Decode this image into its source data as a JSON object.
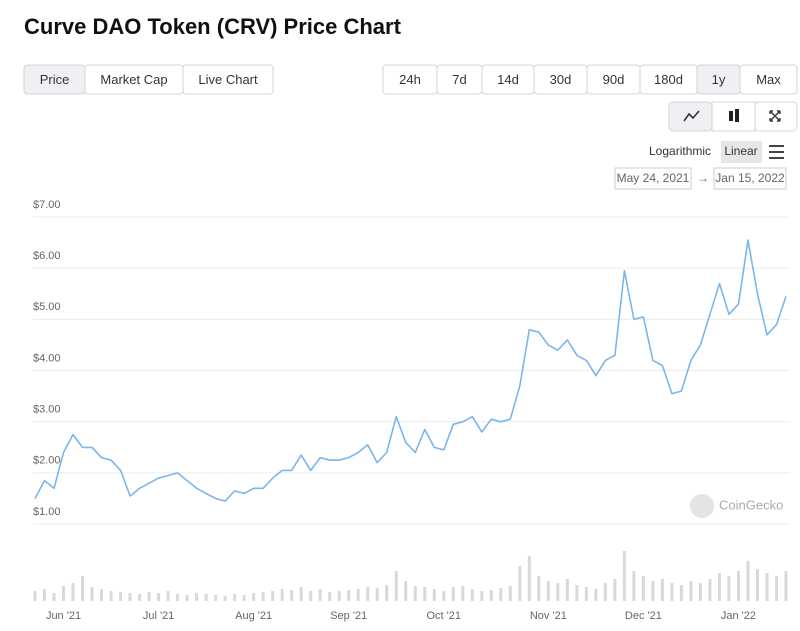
{
  "header": {
    "title": "Curve DAO Token (CRV) Price Chart"
  },
  "tabs": [
    "Price",
    "Market Cap",
    "Live Chart"
  ],
  "active_tab": 0,
  "ranges": [
    "24h",
    "7d",
    "14d",
    "30d",
    "90d",
    "180d",
    "1y",
    "Max"
  ],
  "active_range": 6,
  "scale_options": [
    "Logarithmic",
    "Linear"
  ],
  "active_scale": 1,
  "date_range": {
    "from": "May 24, 2021",
    "arrow": "→",
    "to": "Jan 15, 2022"
  },
  "watermark": "CoinGecko",
  "chart_data": {
    "type": "line",
    "color": "#7cb5ec",
    "volume_color": "#d9d9d9",
    "grid": true,
    "categories": [
      null,
      null,
      null,
      "Jun '21",
      null,
      null,
      null,
      null,
      null,
      null,
      null,
      null,
      null,
      "Jul '21",
      null,
      null,
      null,
      null,
      null,
      null,
      null,
      null,
      null,
      "Aug '21",
      null,
      null,
      null,
      null,
      null,
      null,
      null,
      null,
      null,
      "Sep '21",
      null,
      null,
      null,
      null,
      null,
      null,
      null,
      null,
      null,
      "Oct '21",
      null,
      null,
      null,
      null,
      null,
      null,
      null,
      null,
      null,
      null,
      "Nov '21",
      null,
      null,
      null,
      null,
      null,
      null,
      null,
      null,
      null,
      "Dec '21",
      null,
      null,
      null,
      null,
      null,
      null,
      null,
      null,
      null,
      "Jan '22",
      null,
      null,
      null,
      null,
      null
    ],
    "values": [
      1.4,
      1.75,
      1.6,
      2.3,
      2.65,
      2.4,
      2.4,
      2.2,
      2.15,
      1.95,
      1.45,
      1.6,
      1.7,
      1.8,
      1.85,
      1.9,
      1.75,
      1.6,
      1.5,
      1.4,
      1.35,
      1.55,
      1.5,
      1.6,
      1.6,
      1.8,
      1.95,
      1.95,
      2.25,
      1.95,
      2.2,
      2.15,
      2.15,
      2.2,
      2.3,
      2.45,
      2.1,
      2.3,
      3.0,
      2.5,
      2.3,
      2.75,
      2.4,
      2.35,
      2.85,
      2.9,
      3.0,
      2.7,
      2.95,
      2.9,
      2.95,
      3.6,
      4.7,
      4.65,
      4.4,
      4.3,
      4.5,
      4.2,
      4.1,
      3.8,
      4.1,
      4.2,
      5.85,
      4.9,
      4.95,
      4.1,
      4.0,
      3.45,
      3.5,
      4.1,
      4.4,
      5.0,
      5.6,
      5.0,
      5.2,
      6.45,
      5.4,
      4.6,
      4.8,
      5.35
    ],
    "volume_values": [
      10,
      12,
      8,
      15,
      18,
      25,
      14,
      12,
      10,
      9,
      8,
      7,
      9,
      8,
      10,
      7,
      6,
      8,
      7,
      6,
      5,
      7,
      6,
      8,
      9,
      10,
      12,
      11,
      14,
      10,
      12,
      9,
      10,
      11,
      12,
      14,
      13,
      16,
      30,
      20,
      15,
      14,
      12,
      10,
      14,
      15,
      12,
      10,
      11,
      13,
      15,
      35,
      45,
      25,
      20,
      18,
      22,
      16,
      14,
      12,
      18,
      22,
      50,
      30,
      25,
      20,
      22,
      18,
      16,
      20,
      18,
      22,
      28,
      25,
      30,
      40,
      32,
      28,
      25,
      30
    ],
    "ylim": [
      1,
      7
    ],
    "y2lim": [
      0,
      50
    ],
    "yticks": [
      {
        "value": 1,
        "label": "$1.00"
      },
      {
        "value": 2,
        "label": "$2.00"
      },
      {
        "value": 3,
        "label": "$3.00"
      },
      {
        "value": 4,
        "label": "$4.00"
      },
      {
        "value": 5,
        "label": "$5.00"
      },
      {
        "value": 6,
        "label": "$6.00"
      },
      {
        "value": 7,
        "label": "$7.00"
      }
    ]
  }
}
